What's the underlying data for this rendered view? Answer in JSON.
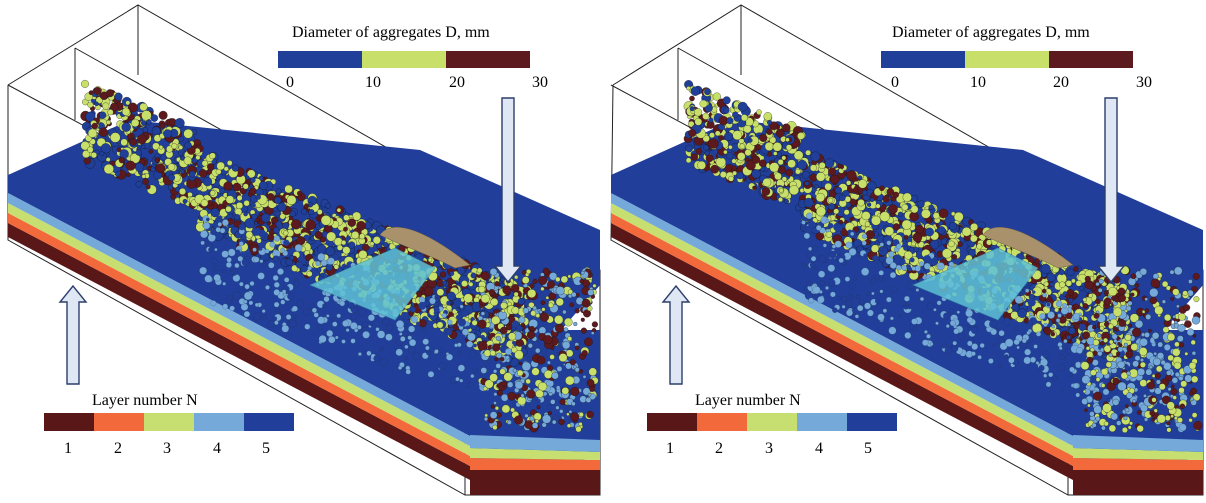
{
  "panels": [
    {
      "diameter_legend": {
        "title": "Diameter of aggregates D, mm",
        "ticks": [
          "0",
          "10",
          "20",
          "30"
        ],
        "colors": [
          "#1f3f99",
          "#c8e06a",
          "#5c1a1e"
        ]
      },
      "layer_legend": {
        "title": "Layer number N",
        "ticks": [
          "1",
          "2",
          "3",
          "4",
          "5"
        ],
        "colors": [
          "#5a1718",
          "#f26a3c",
          "#c6df70",
          "#74a9d9",
          "#213e9a"
        ]
      }
    },
    {
      "diameter_legend": {
        "title": "Diameter of aggregates D, mm",
        "ticks": [
          "0",
          "10",
          "20",
          "30"
        ],
        "colors": [
          "#1f3f99",
          "#c8e06a",
          "#5c1a1e"
        ]
      },
      "layer_legend": {
        "title": "Layer number N",
        "ticks": [
          "1",
          "2",
          "3",
          "4",
          "5"
        ],
        "colors": [
          "#5a1718",
          "#f26a3c",
          "#c6df70",
          "#74a9d9",
          "#213e9a"
        ]
      }
    }
  ]
}
